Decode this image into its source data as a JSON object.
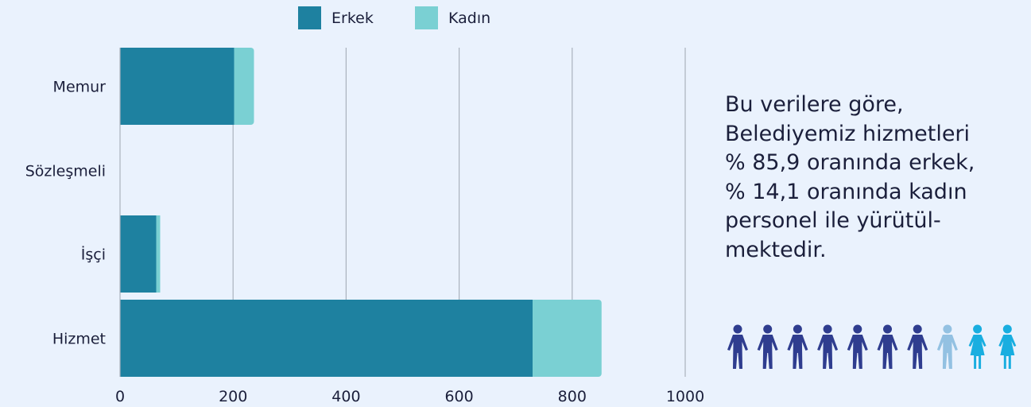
{
  "chart_data": {
    "type": "bar",
    "orientation": "horizontal",
    "stacked": true,
    "categories": [
      "Memur",
      "Sözleşmeli",
      "İşçi",
      "Hizmet"
    ],
    "series": [
      {
        "name": "Erkek",
        "values": [
          202,
          0,
          64,
          730
        ],
        "color": "#1e81a0"
      },
      {
        "name": "Kadın",
        "values": [
          35,
          0,
          7,
          122
        ],
        "color": "#7ad0d3"
      }
    ],
    "xticks": [
      0,
      200,
      400,
      600,
      800,
      1000
    ],
    "xlim": [
      0,
      1000
    ],
    "grid": true,
    "legend": "top-center",
    "title": "",
    "xlabel": "",
    "ylabel": ""
  },
  "summary_text": "Bu verilere göre,\nBelediyemiz hizmetleri\n% 85,9 oranında erkek,\n% 14,1 oranında kadın\npersonel ile yürütül-\nmektedir.",
  "people_icons": {
    "icon": "person-icon",
    "colors": [
      "#2f3d8f",
      "#2f3d8f",
      "#2f3d8f",
      "#2f3d8f",
      "#2f3d8f",
      "#2f3d8f",
      "#2f3d8f",
      "#93c1e2",
      "#19aee0",
      "#19aee0"
    ],
    "types": [
      "male",
      "male",
      "male",
      "male",
      "male",
      "male",
      "male",
      "male",
      "female",
      "female"
    ]
  }
}
